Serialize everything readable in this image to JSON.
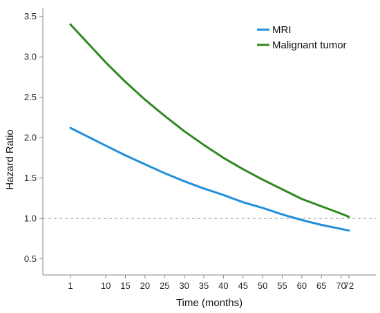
{
  "chart_data": {
    "type": "line",
    "xlabel": "Time (months)",
    "ylabel": "Hazard Ratio",
    "x": [
      1,
      10,
      15,
      20,
      25,
      30,
      35,
      40,
      45,
      50,
      55,
      60,
      65,
      70,
      72
    ],
    "x_tick_labels": [
      "1",
      "10",
      "15",
      "20",
      "25",
      "30",
      "35",
      "40",
      "45",
      "50",
      "55",
      "60",
      "65",
      "70",
      "72"
    ],
    "y_ticks": [
      0.5,
      1.0,
      1.5,
      2.0,
      2.5,
      3.0,
      3.5
    ],
    "y_tick_labels": [
      "0.5",
      "1.0",
      "1.5",
      "2.0",
      "2.5",
      "3.0",
      "3.5"
    ],
    "ylim": [
      0.3,
      3.6
    ],
    "reference_line": {
      "y": 1.0,
      "style": "dashed",
      "color": "#999999"
    },
    "legend_position": "top-right",
    "grid": false,
    "series": [
      {
        "name": "MRI",
        "color": "#1f8fdc",
        "values": [
          2.12,
          1.9,
          1.78,
          1.67,
          1.56,
          1.46,
          1.37,
          1.29,
          1.2,
          1.13,
          1.05,
          0.98,
          0.92,
          0.87,
          0.85
        ]
      },
      {
        "name": "Malignant tumor",
        "color": "#2e8a1e",
        "values": [
          3.4,
          2.93,
          2.69,
          2.47,
          2.27,
          2.08,
          1.91,
          1.75,
          1.61,
          1.48,
          1.36,
          1.24,
          1.15,
          1.06,
          1.02
        ]
      }
    ]
  }
}
